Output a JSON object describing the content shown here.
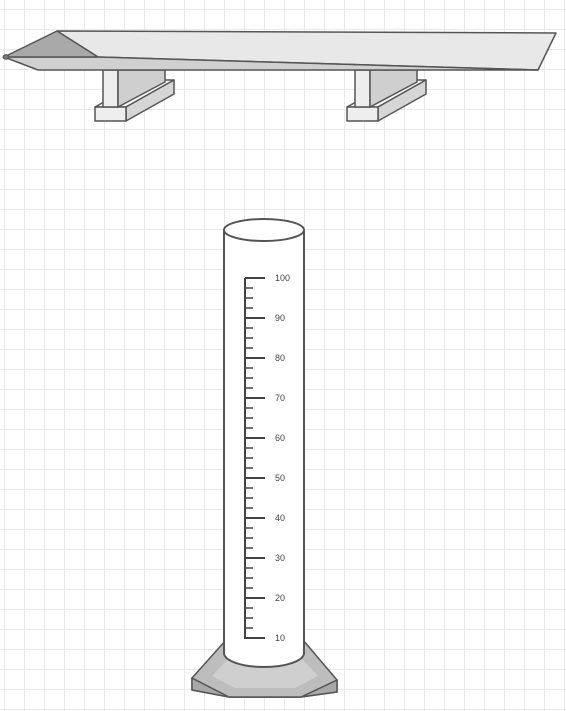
{
  "diagram": {
    "cylinder": {
      "scale_labels": [
        "100",
        "90",
        "80",
        "70",
        "60",
        "50",
        "40",
        "30",
        "20",
        "10"
      ]
    }
  }
}
